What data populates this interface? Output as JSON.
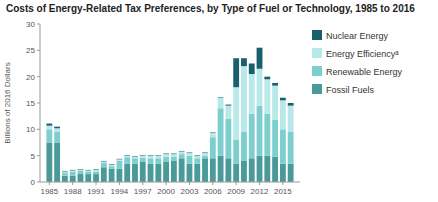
{
  "chart_data": {
    "type": "bar",
    "title": "Costs of Energy-Related Tax Preferences, by Type of Fuel or Technology, 1985 to 2016",
    "ylabel": "Billions of 2016 Dollars",
    "stacked": true,
    "grid": false,
    "legend": "right",
    "x": [
      1985,
      1986,
      1987,
      1988,
      1989,
      1990,
      1991,
      1992,
      1993,
      1994,
      1995,
      1996,
      1997,
      1998,
      1999,
      2000,
      2001,
      2002,
      2003,
      2004,
      2005,
      2006,
      2007,
      2008,
      2009,
      2010,
      2011,
      2012,
      2013,
      2014,
      2015,
      2016
    ],
    "xlim": [
      1983.8,
      2017.2
    ],
    "xticks": [
      1985,
      1988,
      1991,
      1994,
      1997,
      2000,
      2003,
      2006,
      2009,
      2012,
      2015
    ],
    "ylim": [
      0,
      30
    ],
    "yticks": [
      0,
      5,
      10,
      15,
      20,
      25,
      30
    ],
    "series": [
      {
        "name": "Fossil Fuels",
        "color": "#4a9a9a",
        "values": [
          7.5,
          7.5,
          1.2,
          1.2,
          1.5,
          1.5,
          1.5,
          2.8,
          2.5,
          2.5,
          3.5,
          3.5,
          3.8,
          3.5,
          3.5,
          3.8,
          4.0,
          4.5,
          3.5,
          3.5,
          4.5,
          4.5,
          5.0,
          4.5,
          3.5,
          4.0,
          4.5,
          5.0,
          5.0,
          4.8,
          3.5,
          3.5
        ]
      },
      {
        "name": "Renewable Energy",
        "color": "#7dcfcf",
        "values": [
          2.5,
          2.0,
          0.5,
          0.8,
          0.6,
          0.5,
          0.5,
          0.8,
          0.5,
          1.5,
          1.2,
          1.0,
          0.8,
          1.0,
          1.0,
          1.0,
          0.8,
          0.8,
          1.5,
          1.0,
          0.5,
          4.0,
          9.0,
          7.5,
          4.5,
          5.5,
          8.5,
          9.5,
          8.0,
          7.0,
          6.5,
          6.0
        ]
      },
      {
        "name": "Energy Efficiencyᵃ",
        "color": "#b8e8e8",
        "values": [
          0.7,
          0.7,
          0.3,
          0.2,
          0.2,
          0.2,
          0.3,
          0.3,
          0.3,
          0.3,
          0.3,
          0.3,
          0.4,
          0.5,
          0.5,
          0.5,
          0.5,
          0.5,
          0.5,
          0.5,
          0.5,
          0.8,
          2.0,
          2.5,
          10.0,
          12.5,
          7.5,
          7.0,
          6.5,
          6.5,
          5.5,
          5.0
        ]
      },
      {
        "name": "Nuclear Energy",
        "color": "#1a5f6e",
        "values": [
          0.4,
          0.3,
          0.1,
          0.1,
          0.1,
          0.1,
          0.1,
          0.1,
          0.1,
          0.1,
          0.1,
          0.1,
          0.1,
          0.1,
          0.1,
          0.1,
          0.1,
          0.1,
          0.1,
          0.1,
          0.1,
          0.1,
          0.1,
          0.2,
          5.5,
          1.5,
          2.0,
          4.0,
          0.5,
          0.5,
          0.5,
          0.5
        ]
      }
    ]
  }
}
